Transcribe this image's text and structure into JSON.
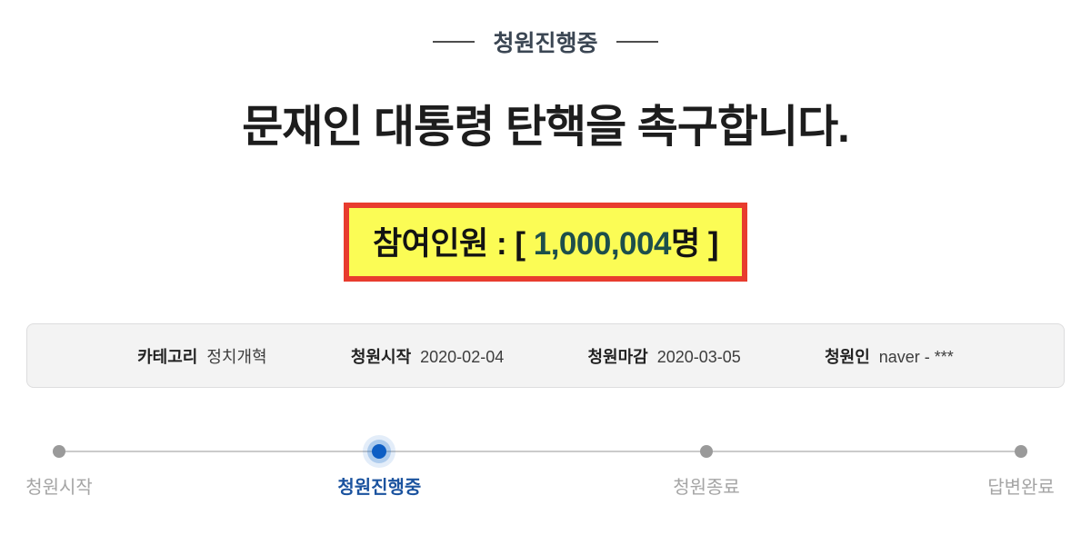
{
  "header": {
    "status_text": "청원진행중"
  },
  "petition": {
    "title": "문재인 대통령 탄핵을 촉구합니다.",
    "participants": {
      "prefix": "참여인원 : [ ",
      "count": "1,000,004",
      "unit": "명",
      "suffix": " ]"
    }
  },
  "info_bar": {
    "items": [
      {
        "label": "카테고리",
        "value": "정치개혁"
      },
      {
        "label": "청원시작",
        "value": "2020-02-04"
      },
      {
        "label": "청원마감",
        "value": "2020-03-05"
      },
      {
        "label": "청원인",
        "value": "naver - ***"
      }
    ]
  },
  "progress": {
    "steps": [
      {
        "label": "청원시작",
        "active": false
      },
      {
        "label": "청원진행중",
        "active": true
      },
      {
        "label": "청원종료",
        "active": false
      },
      {
        "label": "답변완료",
        "active": false
      }
    ]
  },
  "colors": {
    "accent_blue": "#0d5ec4",
    "accent_blue_text": "#1b539f",
    "highlight_box_bg": "#fbfc55",
    "highlight_box_border": "#e83c2e",
    "count_color": "#1d4f4b",
    "inactive_dot": "#9a9a9a",
    "inactive_label": "#a5a5a5"
  }
}
